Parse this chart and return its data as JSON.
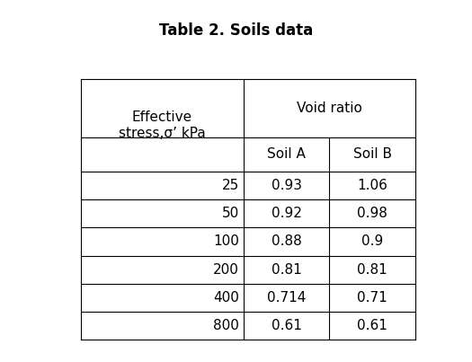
{
  "title": "Table 2. Soils data",
  "title_fontsize": 12,
  "title_fontweight": "bold",
  "header_row1_col0": "Effective\nstress,σ’ kPa",
  "header_row1_col12": "Void ratio",
  "header_row2": [
    "Soil A",
    "Soil B"
  ],
  "data_rows": [
    [
      "25",
      "0.93",
      "1.06"
    ],
    [
      "50",
      "0.92",
      "0.98"
    ],
    [
      "100",
      "0.88",
      "0.9"
    ],
    [
      "200",
      "0.81",
      "0.81"
    ],
    [
      "400",
      "0.714",
      "0.71"
    ],
    [
      "800",
      "0.61",
      "0.61"
    ]
  ],
  "background_color": "#ffffff",
  "line_color": "#000000",
  "line_width": 0.8,
  "cell_fontsize": 11,
  "header_fontsize": 11
}
